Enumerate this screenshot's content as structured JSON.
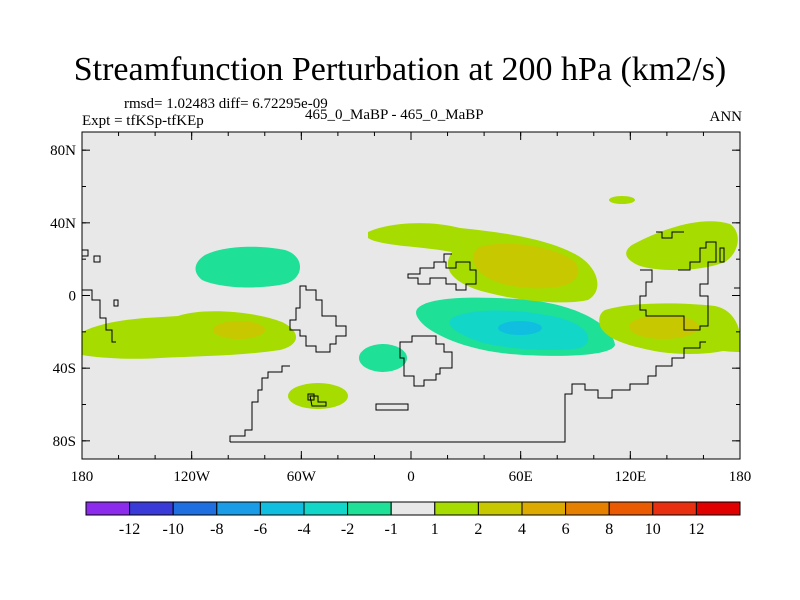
{
  "title": "Streamfunction Perturbation at 200 hPa (km2/s)",
  "stats": "rmsd= 1.02483 diff= 6.72295e-09",
  "expt": "Expt = tfKSp-tfKEp",
  "cases": "465_0_MaBP - 465_0_MaBP",
  "season": "ANN",
  "chart_data": {
    "type": "heatmap",
    "xlim": [
      -180,
      180
    ],
    "ylim": [
      -90,
      90
    ],
    "x_ticks": [
      {
        "value": -180,
        "label": "180"
      },
      {
        "value": -120,
        "label": "120W"
      },
      {
        "value": -60,
        "label": "60W"
      },
      {
        "value": 0,
        "label": "0"
      },
      {
        "value": 60,
        "label": "60E"
      },
      {
        "value": 120,
        "label": "120E"
      },
      {
        "value": 180,
        "label": "180"
      }
    ],
    "y_ticks": [
      {
        "value": 80,
        "label": "80N"
      },
      {
        "value": 40,
        "label": "40N"
      },
      {
        "value": 0,
        "label": "0"
      },
      {
        "value": -40,
        "label": "40S"
      },
      {
        "value": -80,
        "label": "80S"
      }
    ],
    "colorbar": {
      "labels": [
        "-12",
        "-10",
        "-8",
        "-6",
        "-4",
        "-2",
        "-1",
        "1",
        "2",
        "4",
        "6",
        "8",
        "10",
        "12"
      ],
      "colors": [
        "#8c2bec",
        "#3a3ad8",
        "#1f6fe0",
        "#1a9de6",
        "#10bfe0",
        "#12d6c8",
        "#1ee096",
        "#e8e8e8",
        "#a6dc00",
        "#c8c800",
        "#dcaa00",
        "#e68000",
        "#ea5a00",
        "#e83010",
        "#e00000"
      ]
    },
    "background_color": "#e8e8e8",
    "features": [
      {
        "name": "band-pacific-south",
        "level": "1 to 2",
        "lon": -135,
        "lat": -12,
        "lon_radius": 45,
        "lat_radius": 11
      },
      {
        "name": "pacific-south-center",
        "level": "2 to 4",
        "lon": -96,
        "lat": -19,
        "lon_radius": 10,
        "lat_radius": 4
      },
      {
        "name": "atlantic-tropics-ring",
        "level": "-2 to -1",
        "lon": -103,
        "lat": 16,
        "lon_radius": 26,
        "lat_radius": 9
      },
      {
        "name": "south-atlantic-small",
        "level": "-2 to -1",
        "lon": -27,
        "lat": -35,
        "lon_radius": 8,
        "lat_radius": 5
      },
      {
        "name": "south-america-south",
        "level": "1 to 2",
        "lon": -52,
        "lat": -55,
        "lon_radius": 12,
        "lat_radius": 7
      },
      {
        "name": "indian-ocean-low",
        "level": "-8 to -1",
        "lon": 59,
        "lat": -15,
        "lon_radius": 52,
        "lat_radius": 17
      },
      {
        "name": "indian-ocean-low-core",
        "level": "-6 to -4",
        "lon": 61,
        "lat": -17,
        "lon_radius": 30,
        "lat_radius": 9
      },
      {
        "name": "asia-high",
        "level": "1 to 4",
        "lon": 25,
        "lat": 23,
        "lon_radius": 55,
        "lat_radius": 18
      },
      {
        "name": "asia-high-core",
        "level": "2 to 4",
        "lon": 60,
        "lat": 14,
        "lon_radius": 28,
        "lat_radius": 9
      },
      {
        "name": "australia-high",
        "level": "1 to 4",
        "lon": 135,
        "lat": -10,
        "lon_radius": 48,
        "lat_radius": 16
      },
      {
        "name": "australia-high-core",
        "level": "2 to 4",
        "lon": 140,
        "lat": -18,
        "lon_radius": 16,
        "lat_radius": 6
      },
      {
        "name": "north-pacific-high",
        "level": "1 to 2",
        "lon": 145,
        "lat": 27,
        "lon_radius": 30,
        "lat_radius": 9
      },
      {
        "name": "north-pacific-small",
        "level": "1 to 2",
        "lon": 117,
        "lat": 52,
        "lon_radius": 7,
        "lat_radius": 2
      }
    ]
  }
}
